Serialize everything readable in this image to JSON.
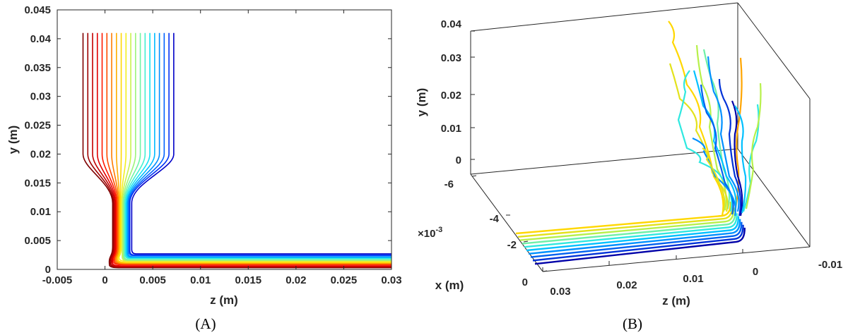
{
  "panels": [
    {
      "caption": "(A)",
      "chart_data": {
        "type": "line",
        "title": "",
        "xlabel": "z (m)",
        "ylabel": "y (m)",
        "xlim": [
          -0.005,
          0.03
        ],
        "ylim": [
          0,
          0.045
        ],
        "x_ticks": [
          "-0.005",
          "0",
          "0.005",
          "0.01",
          "0.015",
          "0.02",
          "0.025",
          "0.03"
        ],
        "y_ticks": [
          "0",
          "0.005",
          "0.01",
          "0.015",
          "0.02",
          "0.025",
          "0.03",
          "0.035",
          "0.04",
          "0.045"
        ],
        "grid": false,
        "series_description": "20 streamlines colored red to blue; each starts at y=0.041 and descends vertically, converges into a neck between z≈0.0008 and z≈0.0028 below y≈0.011, then turns and runs horizontally to z=0.03 at y between ≈0.0003 and ≈0.0027",
        "series": [
          {
            "name": "streamline-1",
            "start_z": -0.0023,
            "neck_z": 0.0008,
            "floor_y": 0.0003,
            "color": "#7f0000"
          },
          {
            "name": "streamline-2",
            "start_z": -0.0018,
            "neck_z": 0.0009,
            "floor_y": 0.0004,
            "color": "#a10000"
          },
          {
            "name": "streamline-3",
            "start_z": -0.0013,
            "neck_z": 0.001,
            "floor_y": 0.0005,
            "color": "#c30000"
          },
          {
            "name": "streamline-4",
            "start_z": -0.0008,
            "neck_z": 0.0011,
            "floor_y": 0.0006,
            "color": "#e40000"
          },
          {
            "name": "streamline-5",
            "start_z": -0.0003,
            "neck_z": 0.0012,
            "floor_y": 0.0008,
            "color": "#ff1800"
          },
          {
            "name": "streamline-6",
            "start_z": 0.0002,
            "neck_z": 0.0013,
            "floor_y": 0.0009,
            "color": "#ff4a00"
          },
          {
            "name": "streamline-7",
            "start_z": 0.0007,
            "neck_z": 0.0014,
            "floor_y": 0.001,
            "color": "#ff7b00"
          },
          {
            "name": "streamline-8",
            "start_z": 0.0012,
            "neck_z": 0.0015,
            "floor_y": 0.0011,
            "color": "#ffad00"
          },
          {
            "name": "streamline-9",
            "start_z": 0.0017,
            "neck_z": 0.0016,
            "floor_y": 0.0012,
            "color": "#ffd700"
          },
          {
            "name": "streamline-10",
            "start_z": 0.0022,
            "neck_z": 0.0017,
            "floor_y": 0.0014,
            "color": "#f2ef20"
          },
          {
            "name": "streamline-11",
            "start_z": 0.0027,
            "neck_z": 0.0018,
            "floor_y": 0.0015,
            "color": "#c9f24d"
          },
          {
            "name": "streamline-12",
            "start_z": 0.0032,
            "neck_z": 0.0019,
            "floor_y": 0.0016,
            "color": "#9cf47a"
          },
          {
            "name": "streamline-13",
            "start_z": 0.0037,
            "neck_z": 0.002,
            "floor_y": 0.0017,
            "color": "#70f4a6"
          },
          {
            "name": "streamline-14",
            "start_z": 0.0042,
            "neck_z": 0.0021,
            "floor_y": 0.0019,
            "color": "#43f0d2"
          },
          {
            "name": "streamline-15",
            "start_z": 0.0047,
            "neck_z": 0.0022,
            "floor_y": 0.002,
            "color": "#16e2f5"
          },
          {
            "name": "streamline-16",
            "start_z": 0.0052,
            "neck_z": 0.0023,
            "floor_y": 0.0021,
            "color": "#00bbff"
          },
          {
            "name": "streamline-17",
            "start_z": 0.0057,
            "neck_z": 0.0024,
            "floor_y": 0.0022,
            "color": "#008fff"
          },
          {
            "name": "streamline-18",
            "start_z": 0.0062,
            "neck_z": 0.0025,
            "floor_y": 0.0024,
            "color": "#0061ff"
          },
          {
            "name": "streamline-19",
            "start_z": 0.0067,
            "neck_z": 0.0026,
            "floor_y": 0.0025,
            "color": "#0032f5"
          },
          {
            "name": "streamline-20",
            "start_z": 0.0072,
            "neck_z": 0.0028,
            "floor_y": 0.0027,
            "color": "#0000c8"
          }
        ],
        "top_y": 0.041,
        "neck_top_y": 0.0115,
        "end_z": 0.03
      }
    },
    {
      "caption": "(B)",
      "chart_data": {
        "type": "line",
        "title": "",
        "projection": "3d",
        "xlabel": "x (m)",
        "ylabel": "y (m)",
        "zlabel": "z (m)",
        "x_ticks": [
          "-6",
          "-4",
          "-2",
          "0"
        ],
        "x_exponent": "×10",
        "x_exponent_power": "-3",
        "y_ticks": [
          "0",
          "0.01",
          "0.02",
          "0.03",
          "0.04"
        ],
        "z_ticks": [
          "0.03",
          "0.02",
          "0.01",
          "0",
          "-0.01"
        ],
        "xlim": [
          -0.006,
          0
        ],
        "ylim": [
          0,
          0.04
        ],
        "zlim": [
          -0.01,
          0.03
        ],
        "grid": false,
        "series_description": "3D streamlines colored yellow to dark blue; horizontal bundle along z from 0.03 to ≈0.001 near y≈0, then rising wavy vertical strands near z≈0 up to y≈0.04"
      }
    }
  ]
}
